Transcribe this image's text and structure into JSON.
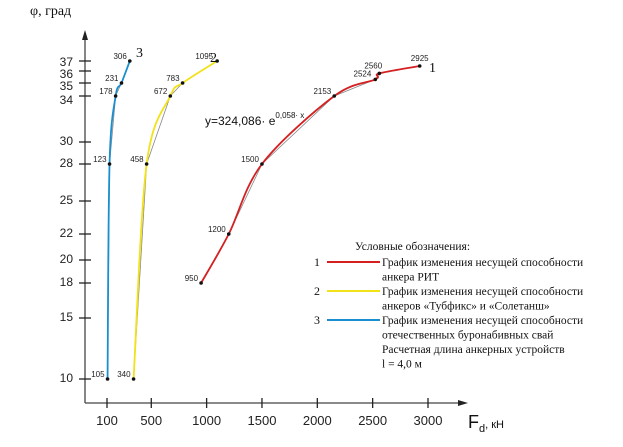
{
  "chart_data": {
    "type": "line",
    "title": "",
    "ylabel": "φ, град",
    "xlabel_main": "F",
    "xlabel_sub": "d",
    "xlabel_unit": ", кН",
    "x_ticks": [
      100,
      500,
      1000,
      1500,
      2000,
      2500,
      3000
    ],
    "y_ticks": [
      10,
      15,
      18,
      20,
      22,
      25,
      28,
      30,
      34,
      35,
      36,
      37
    ],
    "xlim": [
      0,
      3300
    ],
    "ylim": [
      8,
      39
    ],
    "grid": false,
    "equation": {
      "prefix": "y=324,086· e",
      "exponent": "0,058· x"
    },
    "series": [
      {
        "name": "1",
        "color": "#d42020",
        "points": [
          {
            "x": 950,
            "y": 18,
            "label": "950"
          },
          {
            "x": 1200,
            "y": 22,
            "label": "1200"
          },
          {
            "x": 1500,
            "y": 28,
            "label": "1500"
          },
          {
            "x": 2153,
            "y": 34,
            "label": "2153"
          },
          {
            "x": 2524,
            "y": 35.3,
            "label": "2524"
          },
          {
            "x": 2560,
            "y": 35.8,
            "label": "2560"
          },
          {
            "x": 2925,
            "y": 36.5,
            "label": "2925"
          }
        ]
      },
      {
        "name": "2",
        "color": "#f2e21a",
        "points": [
          {
            "x": 340,
            "y": 10,
            "label": "340"
          },
          {
            "x": 458,
            "y": 28,
            "label": "458"
          },
          {
            "x": 672,
            "y": 34,
            "label": "672"
          },
          {
            "x": 783,
            "y": 35,
            "label": "783"
          },
          {
            "x": 1095,
            "y": 37,
            "label": "1095"
          }
        ]
      },
      {
        "name": "3",
        "color": "#1a8fd0",
        "points": [
          {
            "x": 105,
            "y": 10,
            "label": "105"
          },
          {
            "x": 123,
            "y": 28,
            "label": "123"
          },
          {
            "x": 178,
            "y": 34,
            "label": "178"
          },
          {
            "x": 231,
            "y": 35,
            "label": "231"
          },
          {
            "x": 306,
            "y": 37,
            "label": "306"
          }
        ]
      }
    ],
    "legend": {
      "title": "Условные обозначения:",
      "placement": "bottom-right",
      "entries": [
        {
          "num": "1",
          "lines": [
            "График изменения несущей способности",
            "анкера РИТ"
          ]
        },
        {
          "num": "2",
          "lines": [
            "График изменения несущей способности",
            "анкеров «Тубфикс» и «Солетанш»"
          ]
        },
        {
          "num": "3",
          "lines": [
            "График изменения несущей способности",
            "отечественных буронабивных свай",
            "Расчетная длина анкерных устройств",
            "l = 4,0 м"
          ]
        }
      ]
    }
  }
}
